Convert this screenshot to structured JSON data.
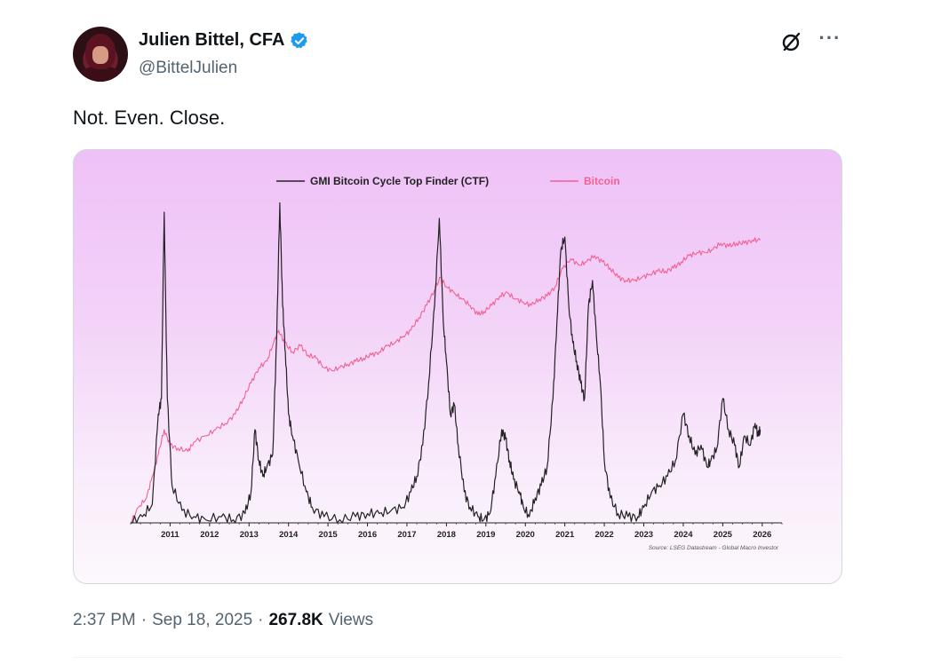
{
  "tweet": {
    "display_name": "Julien Bittel, CFA",
    "handle": "@BittelJulien",
    "verified_color": "#1d9bf0",
    "text": "Not. Even. Close.",
    "time": "2:37 PM",
    "separator": "·",
    "date": "Sep 18, 2025",
    "views_count": "267.8K",
    "views_label": "Views",
    "icons": [
      "grok-icon",
      "more-icon"
    ]
  },
  "chart_data": {
    "type": "line",
    "legend": [
      {
        "name": "GMI Bitcoin Cycle Top Finder (CTF)",
        "color": "#222222"
      },
      {
        "name": "Bitcoin",
        "color": "#f06292"
      }
    ],
    "legend_position": "top-center",
    "x_ticks": [
      "2011",
      "2012",
      "2013",
      "2014",
      "2015",
      "2016",
      "2017",
      "2018",
      "2019",
      "2020",
      "2021",
      "2022",
      "2023",
      "2024",
      "2025",
      "2026"
    ],
    "xlim": [
      2010.0,
      2026.5
    ],
    "source": "Source: LSEG Datastream - Global Macro Investor",
    "grid": false,
    "series": [
      {
        "name": "GMI Bitcoin Cycle Top Finder (CTF)",
        "y_scale": "relative 0-100",
        "points": [
          [
            2010.0,
            0
          ],
          [
            2010.3,
            2
          ],
          [
            2010.55,
            6
          ],
          [
            2010.7,
            35
          ],
          [
            2010.78,
            40
          ],
          [
            2010.85,
            100
          ],
          [
            2010.93,
            40
          ],
          [
            2011.05,
            12
          ],
          [
            2011.3,
            4
          ],
          [
            2011.6,
            2
          ],
          [
            2011.9,
            1
          ],
          [
            2012.3,
            2
          ],
          [
            2012.6,
            1
          ],
          [
            2012.9,
            3
          ],
          [
            2013.05,
            10
          ],
          [
            2013.15,
            30
          ],
          [
            2013.25,
            20
          ],
          [
            2013.35,
            15
          ],
          [
            2013.45,
            18
          ],
          [
            2013.6,
            22
          ],
          [
            2013.7,
            60
          ],
          [
            2013.78,
            103
          ],
          [
            2013.85,
            70
          ],
          [
            2013.92,
            55
          ],
          [
            2014.0,
            35
          ],
          [
            2014.1,
            28
          ],
          [
            2014.25,
            20
          ],
          [
            2014.45,
            10
          ],
          [
            2014.6,
            5
          ],
          [
            2014.9,
            2
          ],
          [
            2015.3,
            1
          ],
          [
            2015.7,
            2
          ],
          [
            2016.0,
            3
          ],
          [
            2016.3,
            3
          ],
          [
            2016.6,
            4
          ],
          [
            2016.9,
            5
          ],
          [
            2017.1,
            10
          ],
          [
            2017.25,
            15
          ],
          [
            2017.4,
            25
          ],
          [
            2017.55,
            45
          ],
          [
            2017.7,
            70
          ],
          [
            2017.82,
            98
          ],
          [
            2017.92,
            65
          ],
          [
            2018.0,
            52
          ],
          [
            2018.1,
            35
          ],
          [
            2018.2,
            38
          ],
          [
            2018.3,
            25
          ],
          [
            2018.45,
            10
          ],
          [
            2018.6,
            5
          ],
          [
            2018.8,
            2
          ],
          [
            2018.95,
            1
          ],
          [
            2019.1,
            3
          ],
          [
            2019.25,
            15
          ],
          [
            2019.4,
            30
          ],
          [
            2019.5,
            27
          ],
          [
            2019.6,
            20
          ],
          [
            2019.7,
            14
          ],
          [
            2019.85,
            10
          ],
          [
            2019.95,
            5
          ],
          [
            2020.1,
            2
          ],
          [
            2020.25,
            8
          ],
          [
            2020.4,
            12
          ],
          [
            2020.55,
            18
          ],
          [
            2020.7,
            40
          ],
          [
            2020.8,
            65
          ],
          [
            2020.9,
            88
          ],
          [
            2021.0,
            92
          ],
          [
            2021.1,
            70
          ],
          [
            2021.2,
            58
          ],
          [
            2021.3,
            52
          ],
          [
            2021.4,
            45
          ],
          [
            2021.5,
            40
          ],
          [
            2021.6,
            70
          ],
          [
            2021.7,
            78
          ],
          [
            2021.8,
            60
          ],
          [
            2021.9,
            45
          ],
          [
            2022.0,
            20
          ],
          [
            2022.15,
            8
          ],
          [
            2022.35,
            3
          ],
          [
            2022.6,
            2
          ],
          [
            2022.85,
            2
          ],
          [
            2023.0,
            5
          ],
          [
            2023.2,
            10
          ],
          [
            2023.4,
            12
          ],
          [
            2023.6,
            15
          ],
          [
            2023.8,
            20
          ],
          [
            2024.0,
            35
          ],
          [
            2024.15,
            28
          ],
          [
            2024.3,
            22
          ],
          [
            2024.45,
            25
          ],
          [
            2024.6,
            18
          ],
          [
            2024.7,
            20
          ],
          [
            2024.85,
            24
          ],
          [
            2025.0,
            40
          ],
          [
            2025.15,
            30
          ],
          [
            2025.3,
            25
          ],
          [
            2025.42,
            18
          ],
          [
            2025.55,
            28
          ],
          [
            2025.7,
            25
          ],
          [
            2025.82,
            32
          ],
          [
            2025.9,
            28
          ],
          [
            2025.95,
            30
          ]
        ]
      },
      {
        "name": "Bitcoin",
        "y_scale": "relative log 0-100",
        "points": [
          [
            2010.0,
            0
          ],
          [
            2010.2,
            5
          ],
          [
            2010.4,
            8
          ],
          [
            2010.55,
            15
          ],
          [
            2010.7,
            22
          ],
          [
            2010.85,
            30
          ],
          [
            2011.0,
            25
          ],
          [
            2011.2,
            24
          ],
          [
            2011.45,
            23
          ],
          [
            2011.6,
            26
          ],
          [
            2011.9,
            28
          ],
          [
            2012.15,
            30
          ],
          [
            2012.4,
            32
          ],
          [
            2012.65,
            35
          ],
          [
            2012.85,
            40
          ],
          [
            2013.05,
            45
          ],
          [
            2013.25,
            50
          ],
          [
            2013.45,
            52
          ],
          [
            2013.62,
            58
          ],
          [
            2013.75,
            62
          ],
          [
            2013.9,
            58
          ],
          [
            2014.1,
            55
          ],
          [
            2014.3,
            57
          ],
          [
            2014.5,
            54
          ],
          [
            2014.7,
            53
          ],
          [
            2014.9,
            50
          ],
          [
            2015.1,
            49
          ],
          [
            2015.3,
            50
          ],
          [
            2015.5,
            51
          ],
          [
            2015.7,
            52
          ],
          [
            2015.9,
            53
          ],
          [
            2016.1,
            54
          ],
          [
            2016.3,
            55
          ],
          [
            2016.5,
            57
          ],
          [
            2016.7,
            58
          ],
          [
            2016.9,
            60
          ],
          [
            2017.1,
            62
          ],
          [
            2017.3,
            66
          ],
          [
            2017.5,
            70
          ],
          [
            2017.7,
            75
          ],
          [
            2017.85,
            79
          ],
          [
            2018.0,
            76
          ],
          [
            2018.2,
            74
          ],
          [
            2018.4,
            72
          ],
          [
            2018.6,
            70
          ],
          [
            2018.8,
            67
          ],
          [
            2018.95,
            68
          ],
          [
            2019.15,
            70
          ],
          [
            2019.35,
            73
          ],
          [
            2019.55,
            74
          ],
          [
            2019.75,
            72
          ],
          [
            2019.95,
            71
          ],
          [
            2020.15,
            70
          ],
          [
            2020.35,
            72
          ],
          [
            2020.55,
            73
          ],
          [
            2020.75,
            76
          ],
          [
            2020.95,
            82
          ],
          [
            2021.15,
            85
          ],
          [
            2021.35,
            83
          ],
          [
            2021.55,
            84
          ],
          [
            2021.75,
            86
          ],
          [
            2021.95,
            84
          ],
          [
            2022.15,
            82
          ],
          [
            2022.35,
            79
          ],
          [
            2022.55,
            78
          ],
          [
            2022.75,
            78
          ],
          [
            2022.95,
            79
          ],
          [
            2023.15,
            80
          ],
          [
            2023.35,
            81
          ],
          [
            2023.55,
            81
          ],
          [
            2023.75,
            82
          ],
          [
            2023.95,
            84
          ],
          [
            2024.15,
            86
          ],
          [
            2024.35,
            87
          ],
          [
            2024.55,
            87
          ],
          [
            2024.75,
            88
          ],
          [
            2024.95,
            90
          ],
          [
            2025.15,
            89
          ],
          [
            2025.35,
            90
          ],
          [
            2025.55,
            90
          ],
          [
            2025.75,
            91
          ],
          [
            2025.95,
            91
          ]
        ]
      }
    ]
  }
}
